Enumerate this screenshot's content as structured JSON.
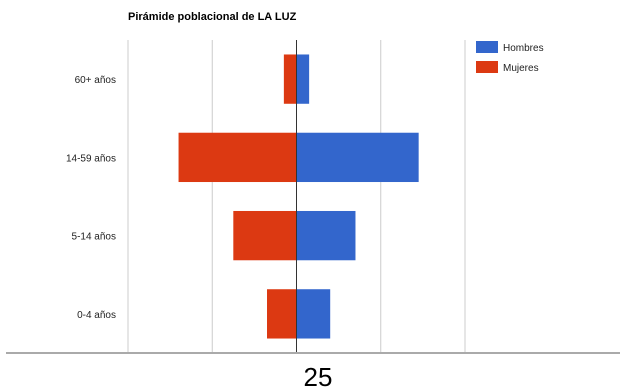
{
  "chart_data": {
    "type": "bar",
    "orientation": "horizontal-diverging",
    "title": "Pirámide poblacional de LA LUZ",
    "categories": [
      "60+ años",
      "14-59 años",
      "5-14 años",
      "0-4 años"
    ],
    "series": [
      {
        "name": "Hombres",
        "color": "#3366cc",
        "values": [
          3,
          29,
          14,
          8
        ]
      },
      {
        "name": "Mujeres",
        "color": "#dc3912",
        "values": [
          -3,
          -28,
          -15,
          -7
        ]
      }
    ],
    "xlim": [
      -40,
      40
    ],
    "grid": true,
    "legend_position": "top-right"
  },
  "footer": {
    "page_number": "25"
  }
}
